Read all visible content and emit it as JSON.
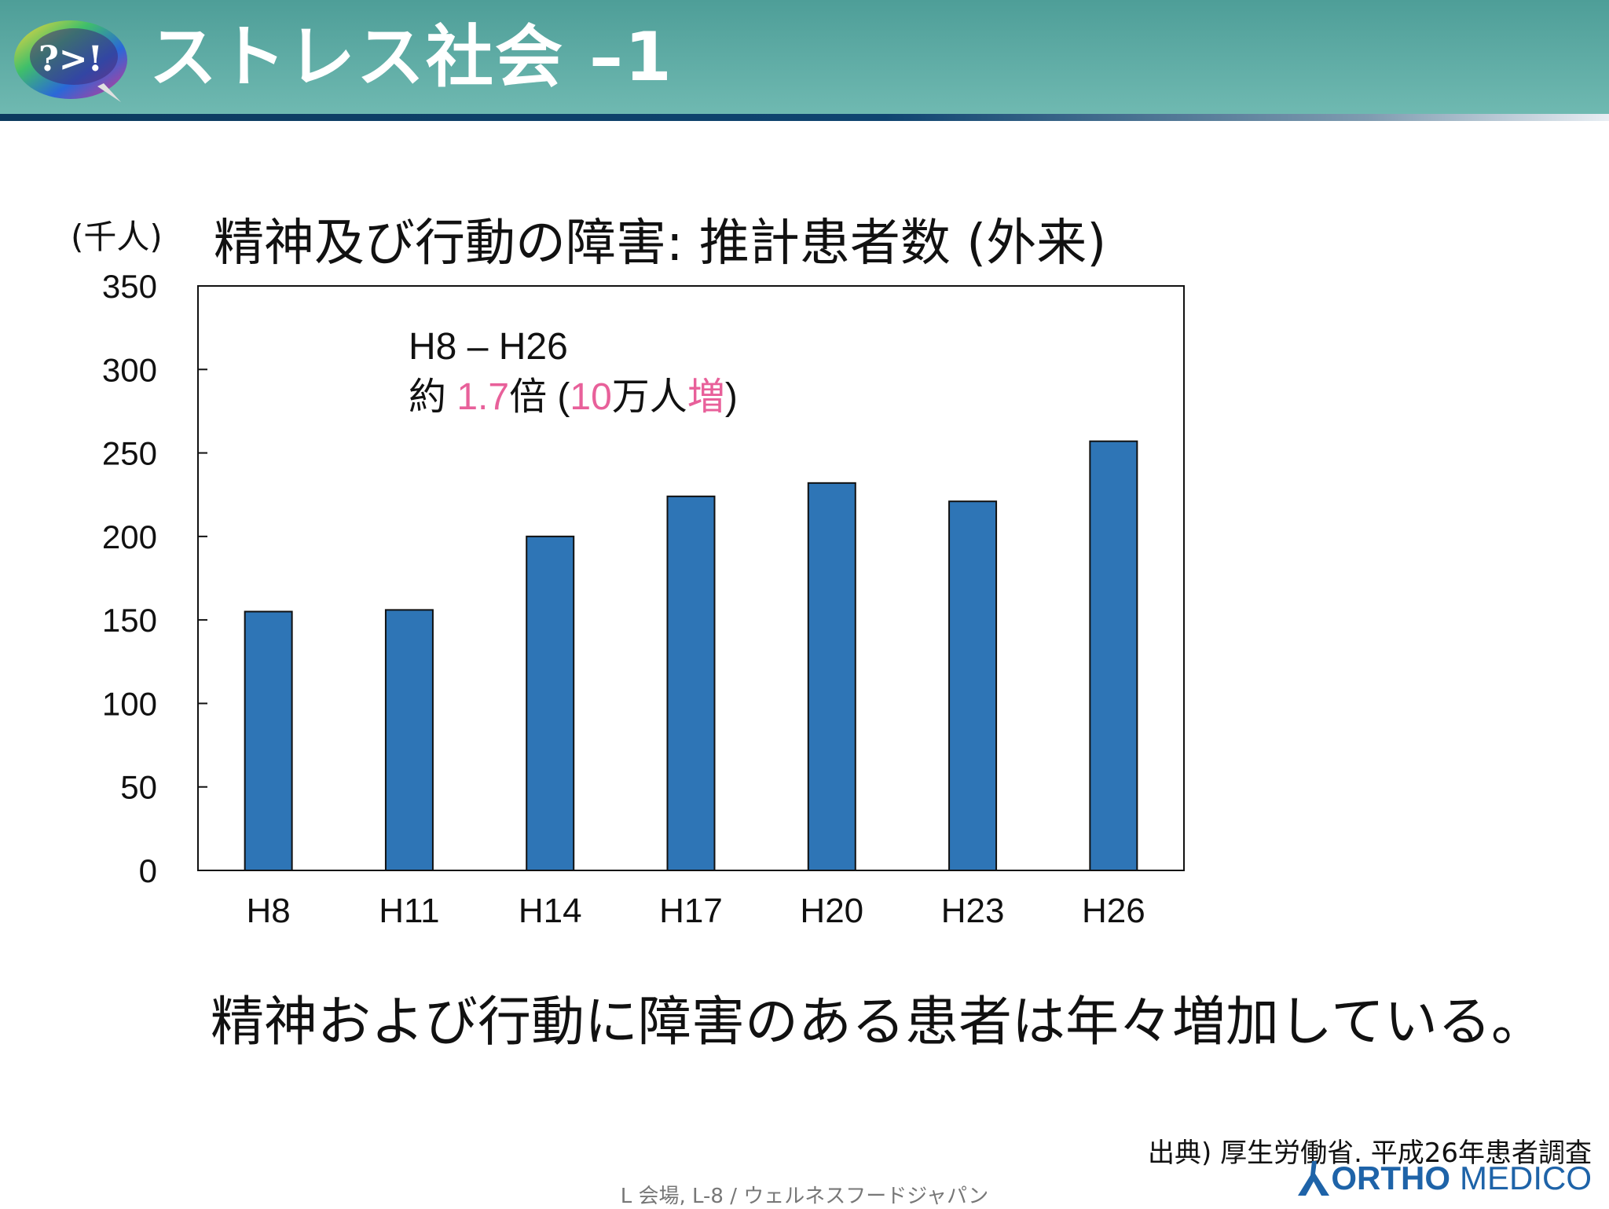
{
  "slide": {
    "title": "ストレス社会 –1",
    "logo_text": "?>!",
    "logo_icon": "speech-bubble-icon"
  },
  "chart_data": {
    "type": "bar",
    "title": "精神及び行動の障害: 推計患者数 (外来)",
    "ylabel": "(千人)",
    "xlabel": "",
    "categories": [
      "H8",
      "H11",
      "H14",
      "H17",
      "H20",
      "H23",
      "H26"
    ],
    "values": [
      155,
      156,
      200,
      224,
      232,
      221,
      257
    ],
    "ylim": [
      0,
      350
    ],
    "yticks": [
      0,
      50,
      100,
      150,
      200,
      250,
      300,
      350
    ],
    "grid": false,
    "bar_color": "#2e75b6",
    "annotation": {
      "line1": "H8 – H26",
      "line2_prefix": "約 ",
      "line2_ratio": "1.7",
      "line2_mid": "倍 (",
      "line2_num": "10",
      "line2_unit": "万人",
      "line2_inc": "増",
      "line2_close": ")",
      "highlight_color": "#e8609a"
    }
  },
  "caption": "精神および行動に障害のある患者は年々増加している。",
  "source": "出典) 厚生労働省. 平成26年患者調査",
  "brand": {
    "icon": "person-icon",
    "bold": "ORTHO",
    "light": "MEDICO",
    "color": "#1e63a8"
  },
  "footer": "L 会場, L-8 / ウェルネスフードジャパン"
}
